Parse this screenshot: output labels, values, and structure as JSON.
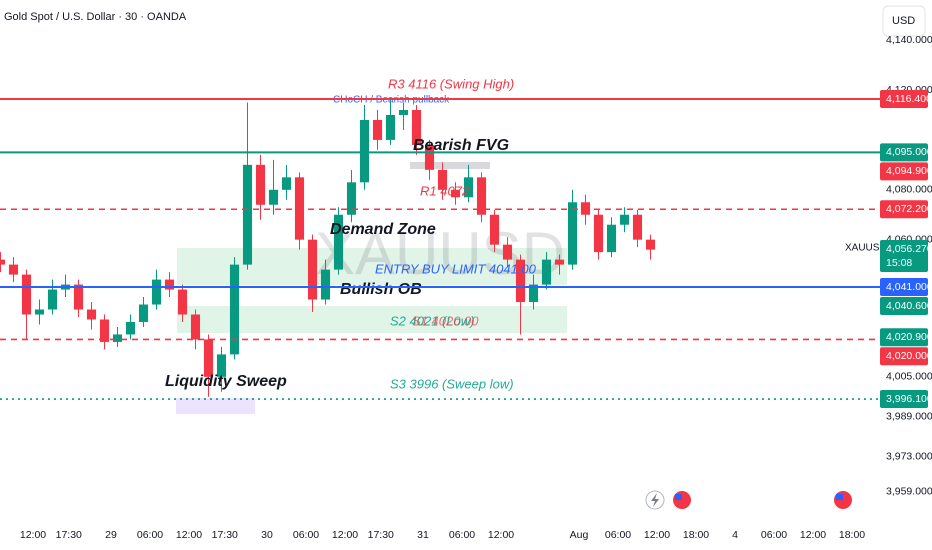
{
  "header": {
    "title": "Gold Spot / U.S. Dollar · 30 · OANDA",
    "currency": "USD",
    "symbol": "XAUUSD",
    "countdown": "15:08"
  },
  "chart_data": {
    "type": "candlestick",
    "x": [
      -5,
      -3,
      -1,
      1,
      3,
      5,
      7,
      9,
      11,
      13,
      15,
      17,
      19,
      21,
      23,
      25,
      27,
      29,
      31,
      33,
      35,
      37,
      39,
      41,
      43,
      45,
      47,
      49,
      51,
      53,
      55,
      57,
      59,
      61,
      63,
      65,
      67,
      69,
      71,
      73,
      75,
      77,
      79,
      81,
      83,
      85,
      87,
      89,
      91,
      93,
      95
    ],
    "open": [
      4052,
      4050,
      4046,
      4030,
      4032,
      4040,
      4042,
      4032,
      4028,
      4019,
      4022,
      4027,
      4034,
      4044,
      4040,
      4030,
      4020,
      4005,
      4014,
      4050,
      4090,
      4074,
      4080,
      4085,
      4060,
      4036,
      4048,
      4070,
      4083,
      4108,
      4100,
      4110,
      4112,
      4098,
      4088,
      4080,
      4077,
      4085,
      4070,
      4058,
      4052,
      4035,
      4042,
      4052,
      4050,
      4075,
      4070,
      4055,
      4066,
      4070,
      4060
    ],
    "high": [
      4055,
      4053,
      4048,
      4036,
      4044,
      4046,
      4044,
      4035,
      4030,
      4025,
      4030,
      4037,
      4048,
      4047,
      4042,
      4032,
      4022,
      4017,
      4053,
      4115,
      4094,
      4092,
      4090,
      4087,
      4062,
      4052,
      4073,
      4088,
      4114,
      4112,
      4116,
      4115,
      4114,
      4100,
      4091,
      4083,
      4090,
      4087,
      4072,
      4061,
      4054,
      4046,
      4055,
      4054,
      4080,
      4078,
      4072,
      4069,
      4073,
      4072,
      4062
    ],
    "low": [
      4047,
      4043,
      4020,
      4026,
      4030,
      4037,
      4029,
      4024,
      4016,
      4017,
      4020,
      4025,
      4032,
      4037,
      4027,
      4016,
      3997,
      3999,
      4012,
      4048,
      4068,
      4070,
      4076,
      4056,
      4031,
      4034,
      4046,
      4067,
      4080,
      4096,
      4098,
      4104,
      4094,
      4084,
      4076,
      4074,
      4075,
      4067,
      4055,
      4049,
      4022,
      4032,
      4040,
      4046,
      4048,
      4066,
      4052,
      4053,
      4063,
      4057,
      4052
    ],
    "close": [
      4050,
      4046,
      4030,
      4032,
      4040,
      4042,
      4032,
      4028,
      4019,
      4022,
      4027,
      4034,
      4044,
      4040,
      4030,
      4020,
      4005,
      4014,
      4050,
      4090,
      4074,
      4080,
      4085,
      4060,
      4036,
      4048,
      4070,
      4083,
      4108,
      4100,
      4110,
      4112,
      4098,
      4088,
      4080,
      4077,
      4085,
      4070,
      4058,
      4052,
      4035,
      4042,
      4052,
      4050,
      4075,
      4070,
      4055,
      4066,
      4070,
      4060,
      4056
    ],
    "up_color": "#089981",
    "down_color": "#f23645",
    "xlim": [
      -5,
      130
    ],
    "xticks": [
      {
        "value": 0,
        "label": "12:00"
      },
      {
        "value": 5.5,
        "label": "17:30"
      },
      {
        "value": 12,
        "label": "29"
      },
      {
        "value": 18,
        "label": "06:00"
      },
      {
        "value": 24,
        "label": "12:00"
      },
      {
        "value": 29.5,
        "label": "17:30"
      },
      {
        "value": 36,
        "label": "30"
      },
      {
        "value": 42,
        "label": "06:00"
      },
      {
        "value": 48,
        "label": "12:00"
      },
      {
        "value": 53.5,
        "label": "17:30"
      },
      {
        "value": 60,
        "label": "31"
      },
      {
        "value": 66,
        "label": "06:00"
      },
      {
        "value": 72,
        "label": "12:00"
      },
      {
        "value": 84,
        "label": "Aug"
      },
      {
        "value": 90,
        "label": "06:00"
      },
      {
        "value": 96,
        "label": "12:00"
      },
      {
        "value": 102,
        "label": "18:00"
      },
      {
        "value": 108,
        "label": "4"
      },
      {
        "value": 114,
        "label": "06:00"
      },
      {
        "value": 120,
        "label": "12:00"
      },
      {
        "value": 126,
        "label": "18:00"
      }
    ],
    "ylim": [
      3947.6,
      4156.1
    ],
    "yticks": [
      {
        "value": 4140,
        "label": "4,140.000"
      },
      {
        "value": 4120,
        "label": "4,120.000"
      },
      {
        "value": 4080,
        "label": "4,080.000"
      },
      {
        "value": 4060,
        "label": "4,060.000"
      },
      {
        "value": 4005,
        "label": "4,005.000"
      },
      {
        "value": 3989,
        "label": "3,989.000"
      },
      {
        "value": 3973,
        "label": "3,973.000"
      },
      {
        "value": 3959,
        "label": "3,959.000"
      }
    ],
    "price_labels": [
      {
        "value": 4116.4,
        "label": "4,116.400",
        "color": "#f23645",
        "line": "solid"
      },
      {
        "value": 4095,
        "label": "4,095.000",
        "color": "#089981",
        "line": "solid"
      },
      {
        "value": 4094.9,
        "label": "4,094.900",
        "color": "#f23645"
      },
      {
        "value": 4072.2,
        "label": "4,072.200",
        "color": "#f23645",
        "line": "dashed"
      },
      {
        "value": 4056.27,
        "label": "4,056.270",
        "color": "#089981"
      },
      {
        "value": 4041,
        "label": "4,041.000",
        "color": "#2962ff",
        "line": "solid"
      },
      {
        "value": 4040.6,
        "label": "4,040.600",
        "color": "#089981"
      },
      {
        "value": 4020.9,
        "label": "4,020.900",
        "color": "#089981"
      },
      {
        "value": 4020,
        "label": "4,020.000",
        "color": "#f23645",
        "line": "dashed"
      },
      {
        "value": 3996.1,
        "label": "3,996.100",
        "color": "#089981",
        "line": "dotted"
      }
    ],
    "annotations": [
      "R3 4116 (Swing High)",
      "CHoCH / Bearish pullback",
      "Bearish FVG",
      "R1 4072",
      "Demand Zone",
      "ENTRY BUY LIMIT 4041.00",
      "Bullish OB",
      "S2 4021 (Low)",
      "S1 4020.00",
      "Liquidity Sweep",
      "S3 3996 (Sweep low)"
    ]
  }
}
